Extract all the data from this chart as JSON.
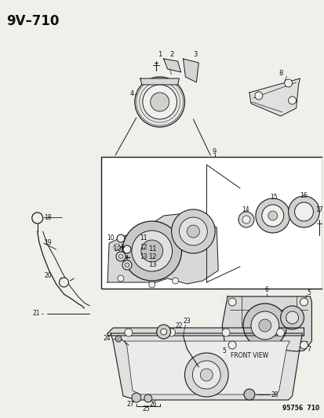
{
  "title": "9V–710",
  "part_number": "95756  710",
  "bg_color": "#f0f0eb",
  "line_color": "#1a1a1a",
  "text_color": "#111111",
  "fig_width": 4.14,
  "fig_height": 5.33,
  "dpi": 100,
  "front_view_text": "FRONT VIEW"
}
